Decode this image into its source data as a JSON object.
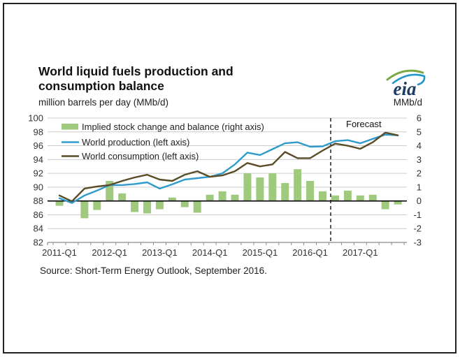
{
  "header": {
    "title_line1": "World liquid fuels production and",
    "title_line2": "consumption balance",
    "subtitle_left": "million barrels per day (MMb/d)",
    "subtitle_right": "MMb/d",
    "logo_text": "eia"
  },
  "source": "Source: Short-Term Energy Outlook, September 2016.",
  "colors": {
    "bar_green": "#9fca7e",
    "production_blue": "#2f9bcd",
    "consumption_brown": "#594c26",
    "gridline": "#cccccc",
    "axis_gray": "#8a8a8a",
    "zero_line": "#000000",
    "text": "#333333",
    "logo_navy": "#1d3c64",
    "logo_green": "#7aa842",
    "logo_blue": "#2196c9"
  },
  "chart_data": {
    "type": "bar+line combo",
    "title": "World liquid fuels production and consumption balance",
    "ylabel_left": "million barrels per day (MMb/d)",
    "ylabel_right": "MMb/d",
    "grid": true,
    "legend_position": "top-left-inside",
    "categories": [
      "2011-Q1",
      "2011-Q2",
      "2011-Q3",
      "2011-Q4",
      "2012-Q1",
      "2012-Q2",
      "2012-Q3",
      "2012-Q4",
      "2013-Q1",
      "2013-Q2",
      "2013-Q3",
      "2013-Q4",
      "2014-Q1",
      "2014-Q2",
      "2014-Q3",
      "2014-Q4",
      "2015-Q1",
      "2015-Q2",
      "2015-Q3",
      "2015-Q4",
      "2016-Q1",
      "2016-Q2",
      "2016-Q3",
      "2016-Q4",
      "2017-Q1",
      "2017-Q2",
      "2017-Q3",
      "2017-Q4"
    ],
    "x_tick_labels": [
      "2011-Q1",
      "2012-Q1",
      "2013-Q1",
      "2014-Q1",
      "2015-Q1",
      "2016-Q1",
      "2017-Q1"
    ],
    "left_axis": {
      "min": 82,
      "max": 100,
      "step": 2,
      "tick_labels": [
        "100",
        "98",
        "96",
        "94",
        "92",
        "90",
        "88",
        "86",
        "84",
        "82"
      ]
    },
    "right_axis": {
      "min": -3,
      "max": 6,
      "step": 1,
      "zero_at_left_value": 88,
      "tick_labels": [
        "6",
        "5",
        "4",
        "3",
        "2",
        "1",
        "0",
        "-1",
        "-2",
        "-3"
      ]
    },
    "forecast": {
      "label": "Forecast",
      "starts_at": "2016-Q3"
    },
    "series": [
      {
        "name": "Implied stock change and balance (right axis)",
        "type": "bar",
        "axis": "right",
        "values": [
          -0.35,
          0.0,
          -1.25,
          -0.65,
          1.45,
          0.55,
          -0.8,
          -0.9,
          -0.6,
          0.25,
          -0.45,
          -0.85,
          0.45,
          0.7,
          0.45,
          2.0,
          1.7,
          2.0,
          1.3,
          2.3,
          1.45,
          0.7,
          0.4,
          0.75,
          0.4,
          0.45,
          -0.6,
          -0.25
        ]
      },
      {
        "name": "World production (left axis)",
        "type": "line",
        "axis": "left",
        "values": [
          88.4,
          87.7,
          88.8,
          89.5,
          90.3,
          90.3,
          90.45,
          90.7,
          89.8,
          90.4,
          91.1,
          91.3,
          91.5,
          92.0,
          93.3,
          95.0,
          94.65,
          95.5,
          96.35,
          96.5,
          95.85,
          95.9,
          96.65,
          96.8,
          96.35,
          97.0,
          97.6,
          97.5
        ]
      },
      {
        "name": "World consumption (left axis)",
        "type": "line",
        "axis": "left",
        "values": [
          88.8,
          87.95,
          89.8,
          90.1,
          90.3,
          90.9,
          91.4,
          91.8,
          91.1,
          90.9,
          91.8,
          92.3,
          91.5,
          91.7,
          92.3,
          93.5,
          93.0,
          93.3,
          95.1,
          94.2,
          94.2,
          95.3,
          96.3,
          96.0,
          95.55,
          96.5,
          97.9,
          97.5
        ]
      }
    ]
  }
}
